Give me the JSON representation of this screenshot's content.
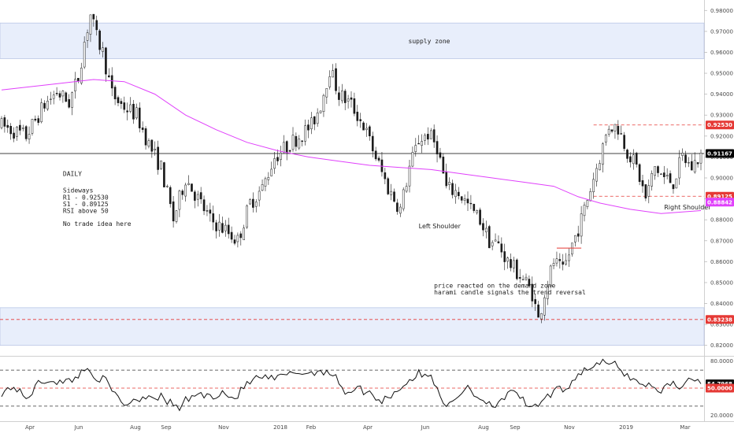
{
  "chart_data": [
    {
      "type": "candlestick",
      "ylim": [
        0.815,
        0.985
      ],
      "y_ticks": [
        "0.98000",
        "0.97000",
        "0.96000",
        "0.95000",
        "0.94000",
        "0.93000",
        "0.92000",
        "0.91000",
        "0.90000",
        "0.89000",
        "0.88000",
        "0.87000",
        "0.86000",
        "0.85000",
        "0.84000",
        "0.83000",
        "0.82000"
      ],
      "x_ticks": [
        "Apr",
        "Jun",
        "Aug",
        "Sep",
        "Nov",
        "2018",
        "Feb",
        "Apr",
        "Jun",
        "Aug",
        "Sep",
        "Nov",
        "2019",
        "Mar"
      ],
      "price_path": [
        [
          0,
          0.925
        ],
        [
          8,
          0.92
        ],
        [
          14,
          0.935
        ],
        [
          18,
          0.941
        ],
        [
          22,
          0.936
        ],
        [
          25,
          0.948
        ],
        [
          27,
          0.965
        ],
        [
          29,
          0.978
        ],
        [
          31,
          0.967
        ],
        [
          33,
          0.96
        ],
        [
          36,
          0.94
        ],
        [
          39,
          0.935
        ],
        [
          44,
          0.93
        ],
        [
          48,
          0.916
        ],
        [
          52,
          0.905
        ],
        [
          56,
          0.88
        ],
        [
          60,
          0.9
        ],
        [
          64,
          0.89
        ],
        [
          68,
          0.88
        ],
        [
          73,
          0.875
        ],
        [
          77,
          0.87
        ],
        [
          81,
          0.888
        ],
        [
          85,
          0.895
        ],
        [
          89,
          0.91
        ],
        [
          93,
          0.915
        ],
        [
          97,
          0.92
        ],
        [
          101,
          0.925
        ],
        [
          104,
          0.935
        ],
        [
          107,
          0.952
        ],
        [
          110,
          0.94
        ],
        [
          114,
          0.935
        ],
        [
          118,
          0.925
        ],
        [
          122,
          0.91
        ],
        [
          126,
          0.895
        ],
        [
          130,
          0.885
        ],
        [
          133,
          0.905
        ],
        [
          136,
          0.918
        ],
        [
          139,
          0.921
        ],
        [
          142,
          0.915
        ],
        [
          145,
          0.895
        ],
        [
          149,
          0.893
        ],
        [
          153,
          0.885
        ],
        [
          156,
          0.88
        ],
        [
          159,
          0.87
        ],
        [
          162,
          0.868
        ],
        [
          165,
          0.86
        ],
        [
          168,
          0.855
        ],
        [
          171,
          0.85
        ],
        [
          173,
          0.845
        ],
        [
          175,
          0.832
        ],
        [
          177,
          0.845
        ],
        [
          180,
          0.86
        ],
        [
          183,
          0.855
        ],
        [
          186,
          0.868
        ],
        [
          189,
          0.88
        ],
        [
          192,
          0.895
        ],
        [
          195,
          0.91
        ],
        [
          198,
          0.925
        ],
        [
          201,
          0.924
        ],
        [
          204,
          0.913
        ],
        [
          207,
          0.905
        ],
        [
          210,
          0.89
        ],
        [
          213,
          0.905
        ],
        [
          216,
          0.9
        ],
        [
          219,
          0.898
        ],
        [
          222,
          0.91
        ],
        [
          225,
          0.905
        ],
        [
          228,
          0.911
        ]
      ],
      "series": [
        {
          "name": "",
          "type": "line",
          "values": [
            [
              0,
              0.942
            ],
            [
              18,
              0.945
            ],
            [
              30,
              0.947
            ],
            [
              40,
              0.946
            ],
            [
              50,
              0.94
            ],
            [
              60,
              0.93
            ],
            [
              70,
              0.923
            ],
            [
              80,
              0.917
            ],
            [
              90,
              0.913
            ],
            [
              100,
              0.91
            ],
            [
              110,
              0.908
            ],
            [
              120,
              0.906
            ],
            [
              130,
              0.905
            ],
            [
              140,
              0.904
            ],
            [
              150,
              0.902
            ],
            [
              160,
              0.9
            ],
            [
              170,
              0.898
            ],
            [
              180,
              0.896
            ],
            [
              188,
              0.891
            ],
            [
              195,
              0.888
            ],
            [
              205,
              0.885
            ],
            [
              215,
              0.883
            ],
            [
              228,
              0.8844
            ]
          ]
        }
      ],
      "levels": [
        {
          "label": "0.92530",
          "value": 0.9253,
          "color": "#e53935",
          "style": "dashed"
        },
        {
          "label": "0.91167",
          "value": 0.91167,
          "color": "#000000",
          "style": "solid"
        },
        {
          "label": "0.89125",
          "value": 0.89125,
          "color": "#e53935",
          "style": "dashed"
        },
        {
          "label": "0.88842",
          "value": 0.88842,
          "color": "#e040fb",
          "style": "solid"
        },
        {
          "label": "0.83238",
          "value": 0.83238,
          "color": "#e53935",
          "style": "dashed"
        }
      ],
      "zones": [
        {
          "label": "supply zone",
          "from": 0.957,
          "to": 0.974
        },
        {
          "label": "",
          "from": 0.82,
          "to": 0.838
        }
      ],
      "annotations": [
        {
          "text": "DAILY",
          "x": 20,
          "y": 0.901
        },
        {
          "text": "Sideways",
          "x": 20,
          "y": 0.893
        },
        {
          "text": "R1 - 0.92530",
          "x": 20,
          "y": 0.8897
        },
        {
          "text": "S1 - 0.89125",
          "x": 20,
          "y": 0.8865
        },
        {
          "text": "RSI above 50",
          "x": 20,
          "y": 0.8832
        },
        {
          "text": "No trade idea here",
          "x": 20,
          "y": 0.877
        },
        {
          "text": "Left Shoulder",
          "x": 136,
          "y": 0.876
        },
        {
          "text": "price reacted on the demand zone",
          "x": 141,
          "y": 0.8475
        },
        {
          "text": "harami candle signals the trend reversal",
          "x": 141,
          "y": 0.8443
        },
        {
          "text": "Right Shoulder",
          "x": 216,
          "y": 0.885
        }
      ]
    },
    {
      "type": "line",
      "ylim": [
        15,
        85
      ],
      "y_ticks": [
        "80.0000",
        "50.0000",
        "20.0000"
      ],
      "levels": [
        70,
        50,
        30
      ],
      "current_label": "54.7968",
      "current_value": 54.7968,
      "level_label": "50.0000",
      "series": [
        {
          "name": "",
          "values": [
            [
              0,
              45
            ],
            [
              4,
              52
            ],
            [
              8,
              38
            ],
            [
              12,
              55
            ],
            [
              16,
              60
            ],
            [
              20,
              55
            ],
            [
              24,
              62
            ],
            [
              28,
              72
            ],
            [
              30,
              64
            ],
            [
              34,
              58
            ],
            [
              36,
              46
            ],
            [
              38,
              40
            ],
            [
              40,
              32
            ],
            [
              44,
              38
            ],
            [
              48,
              42
            ],
            [
              52,
              40
            ],
            [
              56,
              31
            ],
            [
              58,
              28
            ],
            [
              60,
              36
            ],
            [
              64,
              44
            ],
            [
              68,
              40
            ],
            [
              72,
              46
            ],
            [
              76,
              38
            ],
            [
              80,
              55
            ],
            [
              84,
              62
            ],
            [
              88,
              60
            ],
            [
              92,
              63
            ],
            [
              96,
              68
            ],
            [
              100,
              66
            ],
            [
              104,
              70
            ],
            [
              106,
              68
            ],
            [
              108,
              64
            ],
            [
              110,
              58
            ],
            [
              112,
              45
            ],
            [
              116,
              50
            ],
            [
              120,
              44
            ],
            [
              124,
              36
            ],
            [
              128,
              45
            ],
            [
              132,
              56
            ],
            [
              136,
              66
            ],
            [
              140,
              62
            ],
            [
              142,
              52
            ],
            [
              144,
              35
            ],
            [
              146,
              30
            ],
            [
              150,
              44
            ],
            [
              152,
              55
            ],
            [
              154,
              42
            ],
            [
              158,
              36
            ],
            [
              160,
              30
            ],
            [
              162,
              36
            ],
            [
              166,
              44
            ],
            [
              170,
              40
            ],
            [
              172,
              26
            ],
            [
              174,
              28
            ],
            [
              176,
              34
            ],
            [
              180,
              46
            ],
            [
              184,
              50
            ],
            [
              188,
              66
            ],
            [
              192,
              74
            ],
            [
              196,
              78
            ],
            [
              200,
              76
            ],
            [
              204,
              64
            ],
            [
              208,
              56
            ],
            [
              212,
              52
            ],
            [
              214,
              46
            ],
            [
              218,
              56
            ],
            [
              222,
              52
            ],
            [
              226,
              62
            ],
            [
              228,
              54.8
            ]
          ]
        }
      ]
    }
  ]
}
